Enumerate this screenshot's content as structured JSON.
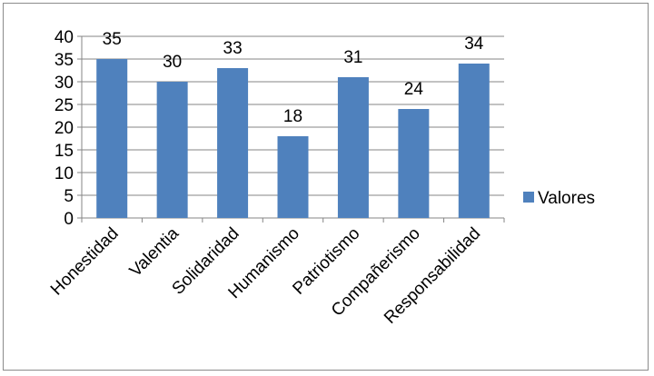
{
  "chart_data": {
    "type": "bar",
    "categories": [
      "Honestidad",
      "Valentia",
      "Solidaridad",
      "Humanismo",
      "Patriotismo",
      "Compañerismo",
      "Responsabilidad"
    ],
    "series": [
      {
        "name": "Valores",
        "values": [
          35,
          30,
          33,
          18,
          31,
          24,
          34
        ]
      }
    ],
    "ylim": [
      0,
      40
    ],
    "yticks": [
      0,
      5,
      10,
      15,
      20,
      25,
      30,
      35,
      40
    ],
    "data_labels": [
      "35",
      "30",
      "33",
      "18",
      "31",
      "24",
      "34"
    ],
    "grid": true,
    "legend_position": "right",
    "colors": {
      "bar": "#4f81bd",
      "grid": "#868686",
      "axis": "#868686"
    }
  }
}
